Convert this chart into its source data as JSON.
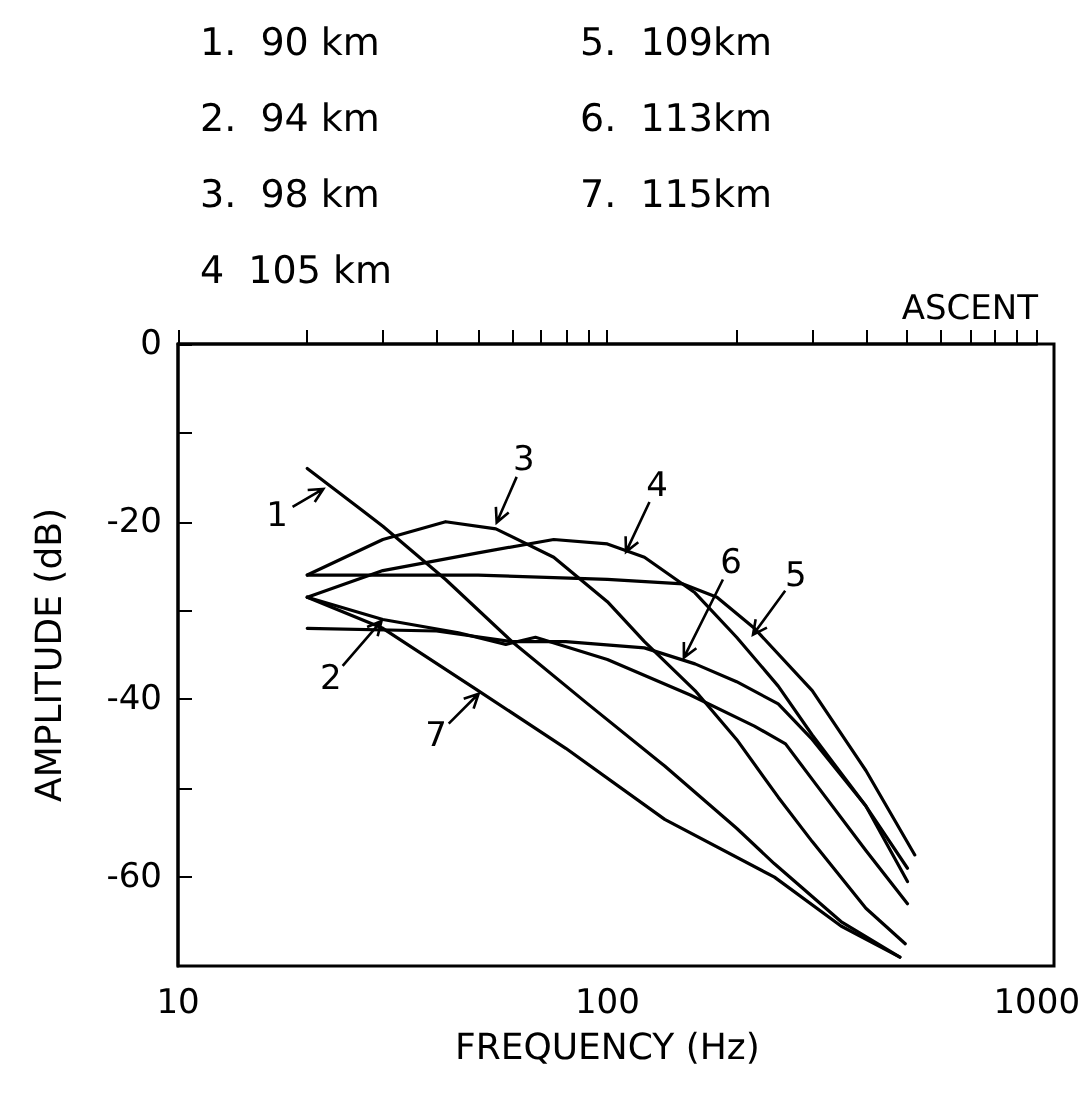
{
  "chart_data": {
    "type": "line",
    "title": "ASCENT",
    "xlabel": "FREQUENCY (Hz)",
    "ylabel": "AMPLITUDE (dB)",
    "log": "x",
    "xlim": [
      10,
      1000
    ],
    "ylim": [
      -70,
      0
    ],
    "xticks": [
      10,
      {
        "value": 20,
        "label": null
      },
      {
        "value": 30,
        "label": null
      },
      {
        "value": 40,
        "label": null
      },
      {
        "value": 50,
        "label": null
      },
      {
        "value": 60,
        "label": null
      },
      {
        "value": 70,
        "label": null
      },
      {
        "value": 80,
        "label": null
      },
      {
        "value": 90,
        "label": null
      },
      100,
      {
        "value": 200,
        "label": null
      },
      {
        "value": 300,
        "label": null
      },
      {
        "value": 400,
        "label": null
      },
      {
        "value": 500,
        "label": null
      },
      {
        "value": 600,
        "label": null
      },
      {
        "value": 700,
        "label": null
      },
      {
        "value": 800,
        "label": null
      },
      {
        "value": 900,
        "label": null
      },
      1000
    ],
    "yticks": [
      0,
      {
        "value": -10,
        "label": null
      },
      -20,
      {
        "value": -30,
        "label": null
      },
      -40,
      {
        "value": -50,
        "label": null
      },
      -60
    ],
    "grid": false,
    "marker": "none",
    "line_style": "solid",
    "series": [
      {
        "color": "#000000",
        "x": [
          20,
          30,
          42,
          60,
          90,
          136,
          200,
          245,
          350,
          480
        ],
        "values": [
          -14,
          -20.5,
          -26.5,
          -33.5,
          -40.5,
          -47.5,
          -54.5,
          -58.5,
          -65,
          -69
        ]
      },
      {
        "color": "#000000",
        "x": [
          20,
          30,
          45,
          58,
          68,
          100,
          156,
          220,
          260,
          300,
          400,
          500
        ],
        "values": [
          -28.5,
          -31,
          -32.5,
          -33.8,
          -33,
          -35.5,
          -39.5,
          -43,
          -45,
          -49,
          -57,
          -63
        ]
      },
      {
        "color": "#000000",
        "x": [
          20,
          30,
          42,
          55,
          75,
          100,
          122,
          160,
          200,
          250,
          300,
          400,
          494
        ],
        "values": [
          -26,
          -22,
          -20,
          -20.8,
          -24,
          -29,
          -33.5,
          -39,
          -44.5,
          -51,
          -56,
          -63.5,
          -67.5
        ]
      },
      {
        "color": "#000000",
        "x": [
          20,
          30,
          50,
          75,
          100,
          122,
          160,
          200,
          250,
          300,
          400,
          500
        ],
        "values": [
          -28.5,
          -25.5,
          -23.5,
          -22,
          -22.5,
          -24,
          -28,
          -33,
          -38.5,
          -44,
          -52,
          -59
        ]
      },
      {
        "color": "#000000",
        "x": [
          20,
          50,
          100,
          150,
          180,
          220,
          300,
          400,
          520
        ],
        "values": [
          -26,
          -26,
          -26.5,
          -27,
          -28.5,
          -32,
          -39,
          -48,
          -57.5
        ]
      },
      {
        "color": "#000000",
        "x": [
          20,
          40,
          60,
          80,
          122,
          160,
          200,
          250,
          300,
          400,
          500
        ],
        "values": [
          -32,
          -32.3,
          -33.5,
          -33.5,
          -34.2,
          -36,
          -38,
          -40.5,
          -44.5,
          -52,
          -60.5
        ]
      },
      {
        "color": "#000000",
        "x": [
          20,
          30,
          50,
          80,
          136,
          245,
          350,
          480
        ],
        "values": [
          -28.5,
          -32,
          -39,
          -45.5,
          -53.5,
          -60,
          -65.5,
          -69
        ]
      }
    ],
    "annotations": [
      "1.  90 km",
      "2.  94 km",
      "3.  98 km",
      "4  105 km",
      "5.  109km",
      "6.  113km",
      "7.  115km",
      {
        "text": "1",
        "x": 22,
        "y": -16.2
      },
      {
        "text": "2",
        "x": 30,
        "y": -31
      },
      {
        "text": "3",
        "x": 55,
        "y": -20.3
      },
      {
        "text": "4",
        "x": 110,
        "y": -23.6
      },
      {
        "text": "5",
        "x": 217,
        "y": -32.9
      },
      {
        "text": "6",
        "x": 150,
        "y": -35.5
      },
      {
        "text": "7",
        "x": 50.5,
        "y": -39.2
      }
    ]
  }
}
